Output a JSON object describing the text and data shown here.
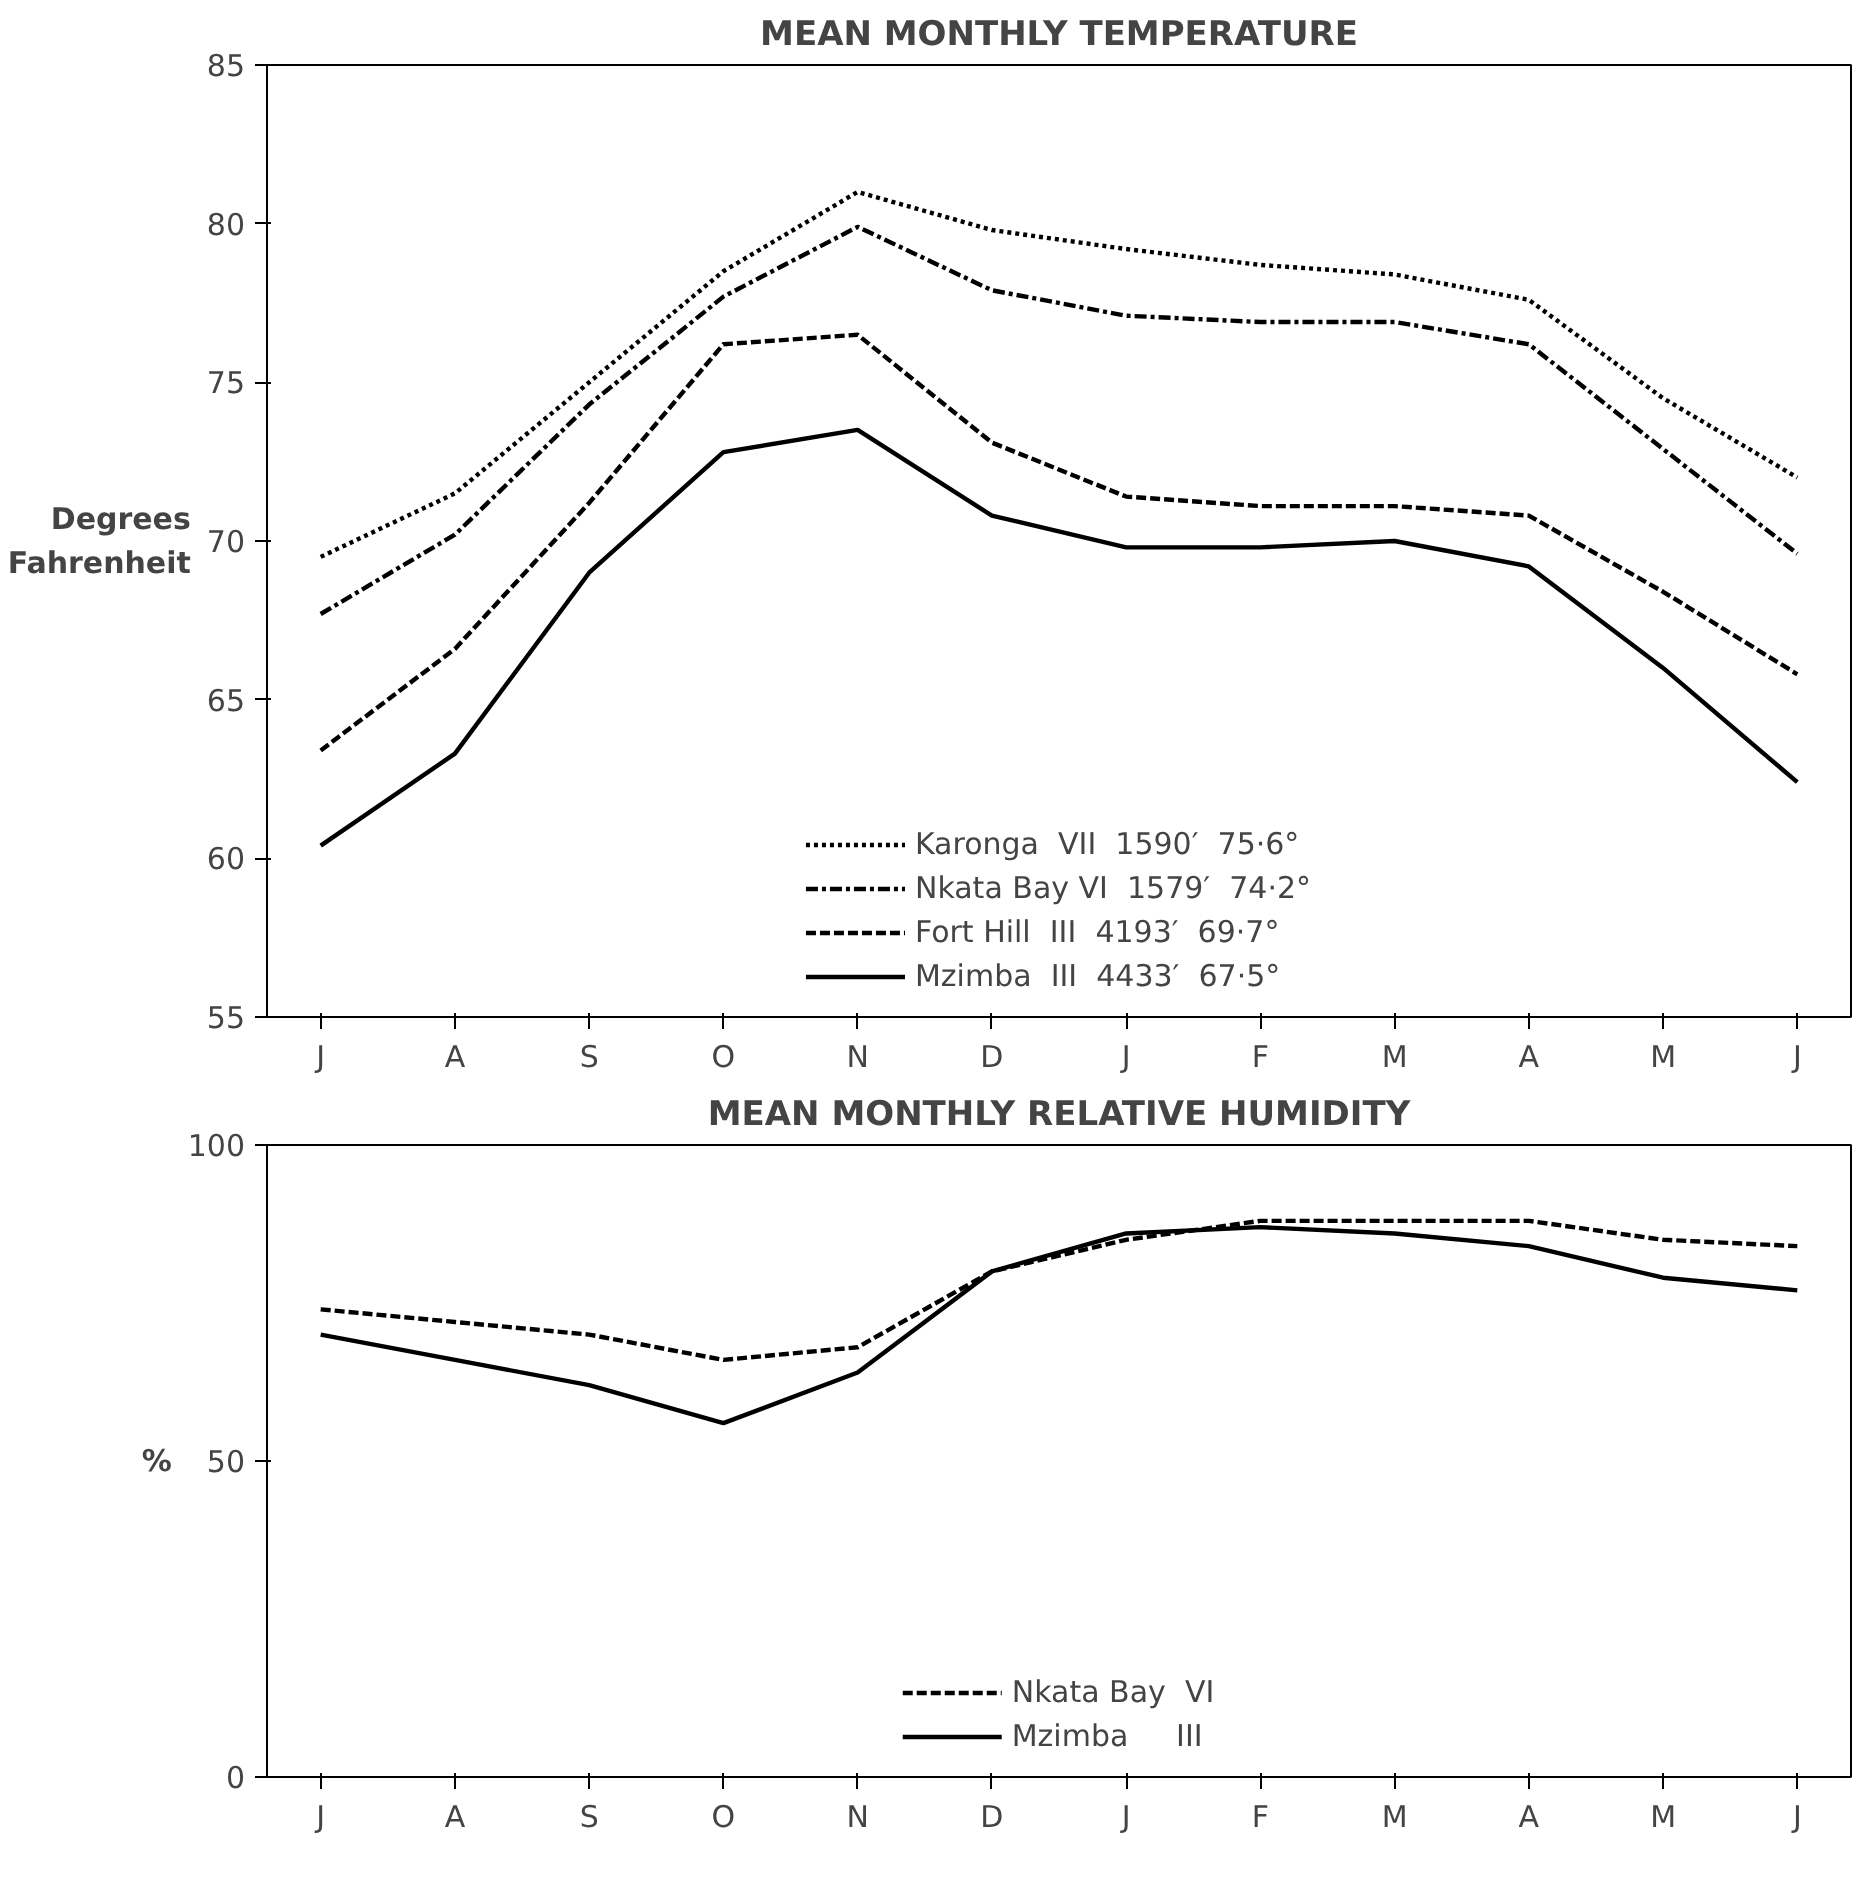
{
  "chart_data": [
    {
      "type": "line",
      "title": "MEAN MONTHLY TEMPERATURE",
      "ylabel": "Degrees\nFahrenheit",
      "categories": [
        "J",
        "A",
        "S",
        "O",
        "N",
        "D",
        "J",
        "F",
        "M",
        "A",
        "M",
        "J"
      ],
      "ylim": [
        55,
        85
      ],
      "yticks": [
        55,
        60,
        65,
        70,
        75,
        80,
        85
      ],
      "grid": false,
      "legend": "bottom",
      "series": [
        {
          "name": "Karonga  VII  1590′  75·6°",
          "color": "#000000",
          "line_style": "dotted",
          "values": [
            69.5,
            71.5,
            75,
            78.5,
            81,
            79.8,
            79.2,
            78.7,
            78.4,
            77.6,
            74.5,
            72
          ]
        },
        {
          "name": "Nkata Bay VI  1579′  74·2°",
          "color": "#000000",
          "line_style": "dashdot",
          "values": [
            67.7,
            70.2,
            74.3,
            77.7,
            79.9,
            77.9,
            77.1,
            76.9,
            76.9,
            76.2,
            72.9,
            69.6
          ]
        },
        {
          "name": "Fort Hill  III  4193′  69·7°",
          "color": "#000000",
          "line_style": "dashed",
          "values": [
            63.4,
            66.6,
            71.2,
            76.2,
            76.5,
            73.1,
            71.4,
            71.1,
            71.1,
            70.8,
            68.4,
            65.8
          ]
        },
        {
          "name": "Mzimba  III  4433′  67·5°",
          "color": "#000000",
          "line_style": "solid",
          "values": [
            60.4,
            63.3,
            69.0,
            72.8,
            73.5,
            70.8,
            69.8,
            69.8,
            70.0,
            69.2,
            66.0,
            62.4
          ]
        }
      ]
    },
    {
      "type": "line",
      "title": "MEAN MONTHLY RELATIVE HUMIDITY",
      "ylabel": "%",
      "categories": [
        "J",
        "A",
        "S",
        "O",
        "N",
        "D",
        "J",
        "F",
        "M",
        "A",
        "M",
        "J"
      ],
      "ylim": [
        0,
        100
      ],
      "yticks": [
        0,
        50,
        100
      ],
      "grid": false,
      "legend": "bottom",
      "series": [
        {
          "name": "Nkata Bay  VI",
          "color": "#000000",
          "line_style": "dashed",
          "values": [
            74,
            72,
            70,
            66,
            68,
            80,
            85,
            88,
            88,
            88,
            85,
            84
          ]
        },
        {
          "name": "Mzimba     III",
          "color": "#000000",
          "line_style": "solid",
          "values": [
            70,
            66,
            62,
            56,
            64,
            80,
            86,
            87,
            86,
            84,
            79,
            77
          ]
        }
      ]
    }
  ]
}
